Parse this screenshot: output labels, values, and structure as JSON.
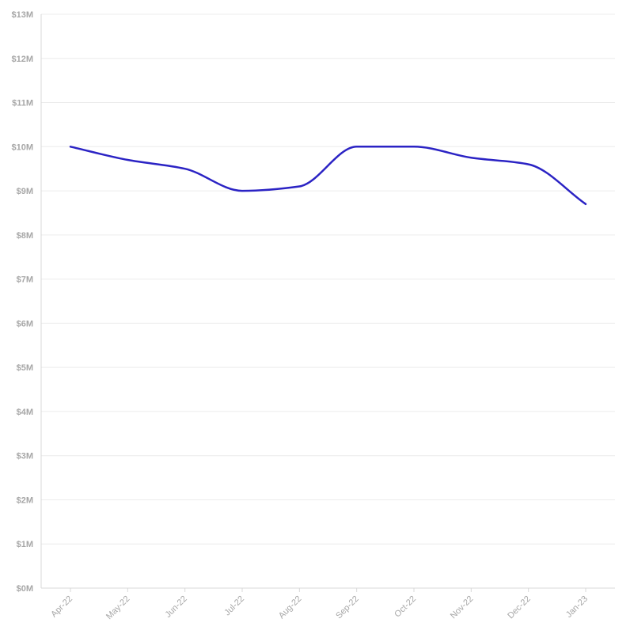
{
  "chart_data": {
    "type": "line",
    "title": "",
    "xlabel": "",
    "ylabel": "",
    "x": [
      "Apr-22",
      "May-22",
      "Jun-22",
      "Jul-22",
      "Aug-22",
      "Sep-22",
      "Oct-22",
      "Nov-22",
      "Dec-22",
      "Jan-23"
    ],
    "series": [
      {
        "values": [
          10.0,
          9.7,
          9.5,
          9.0,
          9.1,
          10.0,
          10.0,
          9.75,
          9.6,
          8.7
        ],
        "color": "#2b23c4"
      }
    ],
    "ylim": [
      0,
      13
    ],
    "y_ticks": [
      0,
      1,
      2,
      3,
      4,
      5,
      6,
      7,
      8,
      9,
      10,
      11,
      12,
      13
    ],
    "y_tick_labels": [
      "$0M",
      "$1M",
      "$2M",
      "$3M",
      "$4M",
      "$5M",
      "$6M",
      "$7M",
      "$8M",
      "$9M",
      "$10M",
      "$11M",
      "$12M",
      "$13M"
    ],
    "x_tick_labels": [
      "Apr-22",
      "May-22",
      "Jun-22",
      "Jul-22",
      "Aug-22",
      "Sep-22",
      "Oct-22",
      "Nov-22",
      "Dec-22",
      "Jan-23"
    ],
    "grid": true,
    "legend": "none"
  }
}
